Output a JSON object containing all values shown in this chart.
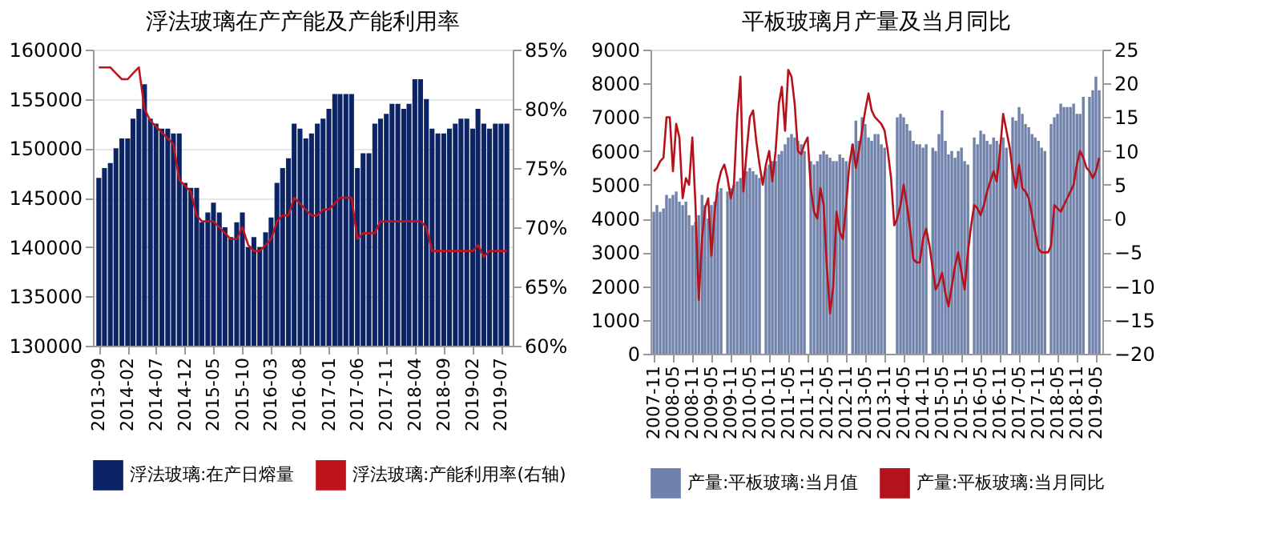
{
  "chart_data": [
    {
      "type": "bar",
      "title": "浮法玻璃在产产能及产能利用率",
      "x": [
        "2013-09",
        "2013-10",
        "2013-11",
        "2013-12",
        "2014-01",
        "2014-02",
        "2014-03",
        "2014-04",
        "2014-05",
        "2014-06",
        "2014-07",
        "2014-08",
        "2014-09",
        "2014-10",
        "2014-11",
        "2014-12",
        "2015-01",
        "2015-02",
        "2015-03",
        "2015-04",
        "2015-05",
        "2015-06",
        "2015-07",
        "2015-08",
        "2015-09",
        "2015-10",
        "2015-11",
        "2015-12",
        "2016-01",
        "2016-02",
        "2016-03",
        "2016-04",
        "2016-05",
        "2016-06",
        "2016-07",
        "2016-08",
        "2016-09",
        "2016-10",
        "2016-11",
        "2016-12",
        "2017-01",
        "2017-02",
        "2017-03",
        "2017-04",
        "2017-05",
        "2017-06",
        "2017-07",
        "2017-08",
        "2017-09",
        "2017-10",
        "2017-11",
        "2017-12",
        "2018-01",
        "2018-02",
        "2018-03",
        "2018-04",
        "2018-05",
        "2018-06",
        "2018-07",
        "2018-08",
        "2018-09",
        "2018-10",
        "2018-11",
        "2018-12",
        "2019-01",
        "2019-02",
        "2019-03",
        "2019-04",
        "2019-05",
        "2019-06",
        "2019-07",
        "2019-08"
      ],
      "series": [
        {
          "name": "浮法玻璃:在产日熔量",
          "color": "#0c2366",
          "values": [
            147000,
            148000,
            148500,
            150000,
            151000,
            151000,
            153000,
            154000,
            156500,
            153000,
            152500,
            152000,
            152000,
            151500,
            151500,
            146500,
            146000,
            146000,
            142500,
            143500,
            144500,
            143500,
            142000,
            141000,
            142500,
            143500,
            140000,
            141000,
            140000,
            141500,
            143000,
            146500,
            148000,
            149000,
            152500,
            152000,
            151000,
            151500,
            152500,
            153000,
            154000,
            155500,
            155500,
            155500,
            155500,
            148000,
            149500,
            149500,
            152500,
            153000,
            153500,
            154500,
            154500,
            154000,
            154500,
            157000,
            157000,
            155000,
            152000,
            151500,
            151500,
            152000,
            152500,
            153000,
            153000,
            152000,
            154000,
            152500,
            152000,
            152500,
            152500,
            152500
          ]
        },
        {
          "name": "浮法玻璃:产能利用率(右轴)",
          "type": "line",
          "axis": "y2",
          "color": "#c0141c",
          "values": [
            83.5,
            83.5,
            83.5,
            83,
            82.5,
            82.5,
            83,
            83.5,
            80,
            79,
            78.5,
            78,
            77.5,
            77,
            74,
            73.5,
            73,
            71,
            70.5,
            70.5,
            70.5,
            70,
            69.5,
            69,
            69,
            70,
            68.5,
            68,
            68,
            68.5,
            69,
            70.5,
            71,
            71,
            72.5,
            72,
            71.5,
            71,
            71,
            71.5,
            71.5,
            72,
            72.5,
            72.5,
            72.5,
            69,
            69.5,
            69.5,
            69.5,
            70.5,
            70.5,
            70.5,
            70.5,
            70.5,
            70.5,
            70.5,
            70.5,
            70,
            68,
            68,
            68,
            68,
            68,
            68,
            68,
            68,
            68.5,
            67.5,
            68,
            68,
            68,
            68
          ]
        }
      ],
      "xlim": [
        "2013-08",
        "2019-09"
      ],
      "xticks": [
        "2013-09",
        "2014-02",
        "2014-07",
        "2014-12",
        "2015-05",
        "2015-10",
        "2016-03",
        "2016-08",
        "2017-01",
        "2017-06",
        "2017-11",
        "2018-04",
        "2018-09",
        "2019-02",
        "2019-07"
      ],
      "ylim": [
        130000,
        160000
      ],
      "yticks": [
        130000,
        135000,
        140000,
        145000,
        150000,
        155000,
        160000
      ],
      "y2lim": [
        60,
        85
      ],
      "y2ticks": [
        {
          "value": 60,
          "label": "60%"
        },
        {
          "value": 65,
          "label": "65%"
        },
        {
          "value": 70,
          "label": "70%"
        },
        {
          "value": 75,
          "label": "75%"
        },
        {
          "value": 80,
          "label": "80%"
        },
        {
          "value": 85,
          "label": "85%"
        }
      ],
      "grid": "y",
      "legend": "bottom"
    },
    {
      "type": "bar",
      "title": "平板玻璃月产量及当月同比",
      "x": [
        "2007-11",
        "2007-12",
        "2008-01",
        "2008-02",
        "2008-03",
        "2008-04",
        "2008-05",
        "2008-06",
        "2008-07",
        "2008-08",
        "2008-09",
        "2008-10",
        "2008-11",
        "2008-12",
        "2009-01",
        "2009-02",
        "2009-03",
        "2009-04",
        "2009-05",
        "2009-06",
        "2009-07",
        "2009-08",
        "2009-09",
        "2009-10",
        "2009-11",
        "2009-12",
        "2010-01",
        "2010-02",
        "2010-03",
        "2010-04",
        "2010-05",
        "2010-06",
        "2010-07",
        "2010-08",
        "2010-09",
        "2010-10",
        "2010-11",
        "2010-12",
        "2011-01",
        "2011-02",
        "2011-03",
        "2011-04",
        "2011-05",
        "2011-06",
        "2011-07",
        "2011-08",
        "2011-09",
        "2011-10",
        "2011-11",
        "2011-12",
        "2012-01",
        "2012-02",
        "2012-03",
        "2012-04",
        "2012-05",
        "2012-06",
        "2012-07",
        "2012-08",
        "2012-09",
        "2012-10",
        "2012-11",
        "2012-12",
        "2013-01",
        "2013-02",
        "2013-03",
        "2013-04",
        "2013-05",
        "2013-06",
        "2013-07",
        "2013-08",
        "2013-09",
        "2013-10",
        "2013-11",
        "2013-12",
        "2014-01",
        "2014-02",
        "2014-03",
        "2014-04",
        "2014-05",
        "2014-06",
        "2014-07",
        "2014-08",
        "2014-09",
        "2014-10",
        "2014-11",
        "2014-12",
        "2015-01",
        "2015-02",
        "2015-03",
        "2015-04",
        "2015-05",
        "2015-06",
        "2015-07",
        "2015-08",
        "2015-09",
        "2015-10",
        "2015-11",
        "2015-12",
        "2016-01",
        "2016-02",
        "2016-03",
        "2016-04",
        "2016-05",
        "2016-06",
        "2016-07",
        "2016-08",
        "2016-09",
        "2016-10",
        "2016-11",
        "2016-12",
        "2017-01",
        "2017-02",
        "2017-03",
        "2017-04",
        "2017-05",
        "2017-06",
        "2017-07",
        "2017-08",
        "2017-09",
        "2017-10",
        "2017-11",
        "2017-12",
        "2018-01",
        "2018-02",
        "2018-03",
        "2018-04",
        "2018-05",
        "2018-06",
        "2018-07",
        "2018-08",
        "2018-09",
        "2018-10",
        "2018-11",
        "2018-12",
        "2019-01",
        "2019-02",
        "2019-03",
        "2019-04",
        "2019-05",
        "2019-06"
      ],
      "series": [
        {
          "name": "产量:平板玻璃:当月值",
          "color": "#6f82ad",
          "values": [
            4200,
            4400,
            4200,
            4300,
            4700,
            4600,
            4700,
            4800,
            4500,
            4400,
            4500,
            4100,
            3800,
            3900,
            4100,
            4700,
            4400,
            4000,
            4400,
            4500,
            4800,
            4900,
            null,
            4800,
            4900,
            5000,
            5100,
            5200,
            5300,
            5400,
            5500,
            5400,
            5300,
            5200,
            null,
            5500,
            5600,
            5700,
            5700,
            5900,
            6000,
            6200,
            6400,
            6500,
            6400,
            6300,
            6200,
            6000,
            null,
            5700,
            5600,
            5700,
            5900,
            6000,
            5900,
            5800,
            5700,
            5700,
            5900,
            5800,
            5700,
            null,
            6200,
            6900,
            6300,
            7000,
            6800,
            6400,
            6300,
            6500,
            6500,
            6200,
            6100,
            null,
            null,
            null,
            7000,
            7100,
            7000,
            6800,
            6600,
            6300,
            6200,
            6200,
            6100,
            6200,
            null,
            6100,
            6000,
            6500,
            7200,
            6300,
            5900,
            6000,
            5800,
            6000,
            6100,
            5700,
            5600,
            null,
            6400,
            6200,
            6600,
            6500,
            6300,
            6200,
            6400,
            6300,
            6200,
            6400,
            6100,
            null,
            7000,
            6900,
            7300,
            7100,
            6800,
            6700,
            6500,
            6400,
            6300,
            6100,
            6000,
            null,
            6800,
            7000,
            7100,
            7400,
            7300,
            7300,
            7300,
            7400,
            7100,
            7100,
            7600,
            null,
            7600,
            7800,
            8200,
            7800
          ]
        },
        {
          "name": "产量:平板玻璃:当月同比",
          "type": "line",
          "axis": "y2",
          "color": "#b5121b",
          "values": [
            7,
            7.5,
            8.5,
            9,
            15,
            15,
            7,
            14,
            12,
            3,
            6,
            5,
            12,
            2,
            -12,
            -3,
            1.5,
            3,
            -5.5,
            1,
            5,
            7,
            8,
            6,
            3,
            5,
            15,
            21,
            4,
            10,
            15,
            16,
            11.5,
            8,
            5,
            8,
            10,
            5.5,
            10,
            17,
            19.5,
            13,
            22,
            21,
            17,
            10,
            9.5,
            11,
            12,
            4.5,
            1,
            0,
            4.5,
            2,
            -7,
            -14,
            -10,
            1,
            -2,
            -3,
            2,
            8,
            11,
            7.5,
            10,
            13,
            16,
            18.5,
            16,
            15,
            14.5,
            14,
            13,
            10,
            6,
            -1,
            0,
            2,
            5,
            2,
            -1.5,
            -6,
            -6.5,
            -6.5,
            -3,
            -1.5,
            -4,
            -7.5,
            -10.5,
            -9.5,
            -8,
            -11,
            -13,
            -10,
            -7,
            -5,
            -8,
            -10.5,
            -5,
            -1,
            2,
            1.5,
            0.5,
            2,
            4,
            5.5,
            7,
            5.5,
            10,
            15.5,
            13,
            10.5,
            7,
            4.5,
            8,
            4.5,
            4,
            3,
            0.5,
            -2,
            -4.5,
            -5,
            -5,
            -5,
            -4,
            2,
            1.5,
            1,
            2,
            3,
            4,
            5,
            8,
            10,
            9,
            7.5,
            7,
            6,
            7,
            9
          ]
        }
      ],
      "xlim": [
        "2007-10",
        "2019-07"
      ],
      "xticks": [
        "2007-11",
        "2008-05",
        "2008-11",
        "2009-05",
        "2009-11",
        "2010-05",
        "2010-11",
        "2011-05",
        "2011-11",
        "2012-05",
        "2012-11",
        "2013-05",
        "2013-11",
        "2014-05",
        "2014-11",
        "2015-05",
        "2015-11",
        "2016-05",
        "2016-11",
        "2017-05",
        "2017-11",
        "2018-05",
        "2018-11",
        "2019-05"
      ],
      "ylim": [
        0,
        9000
      ],
      "yticks": [
        0,
        1000,
        2000,
        3000,
        4000,
        5000,
        6000,
        7000,
        8000,
        9000
      ],
      "y2lim": [
        -20,
        25
      ],
      "y2ticks": [
        -20,
        -15,
        -10,
        -5,
        0,
        5,
        10,
        15,
        20,
        25
      ],
      "legend": "bottom"
    }
  ]
}
